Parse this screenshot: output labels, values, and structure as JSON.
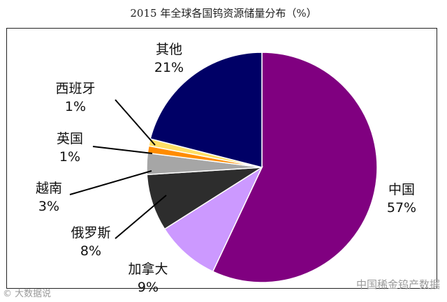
{
  "chart_data": {
    "type": "pie",
    "title": "2015 年全球各国钨资源储量分布（%）",
    "slices": [
      {
        "label": "中国",
        "value_label": "57%",
        "value": 57,
        "color": "#800080"
      },
      {
        "label": "加拿大",
        "value_label": "9%",
        "value": 9,
        "color": "#cc99ff"
      },
      {
        "label": "俄罗斯",
        "value_label": "8%",
        "value": 8,
        "color": "#2d2d2d"
      },
      {
        "label": "越南",
        "value_label": "3%",
        "value": 3,
        "color": "#a6a6a6"
      },
      {
        "label": "英国",
        "value_label": "1%",
        "value": 1,
        "color": "#ff8c00"
      },
      {
        "label": "西班牙",
        "value_label": "1%",
        "value": 1,
        "color": "#ffe066"
      },
      {
        "label": "其他",
        "value_label": "21%",
        "value": 21,
        "color": "#000066"
      }
    ]
  },
  "watermarks": {
    "left": "© 大数据说",
    "right": "中国稀金钨产数据"
  }
}
